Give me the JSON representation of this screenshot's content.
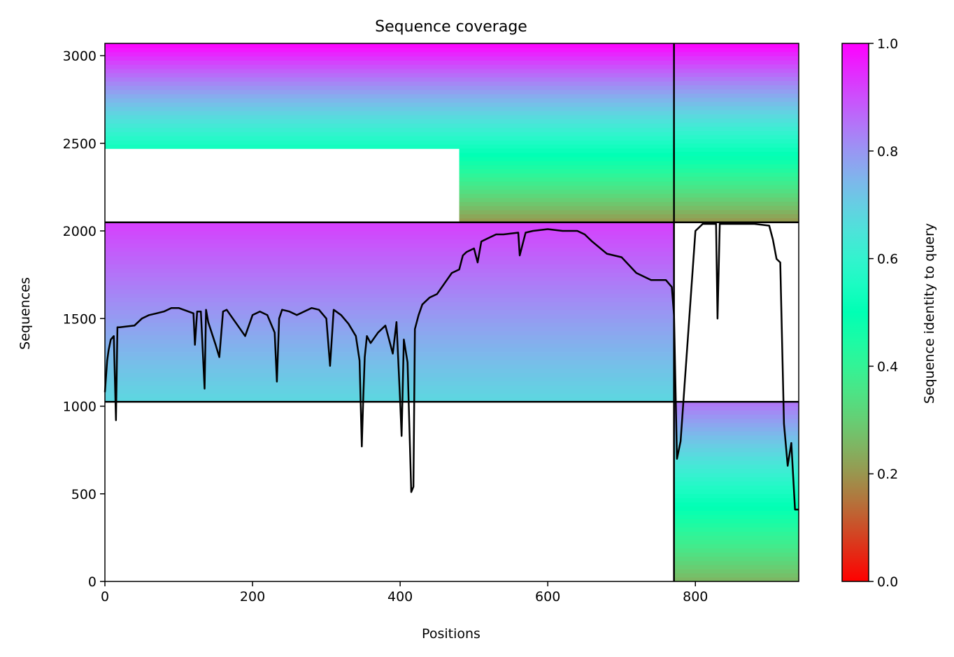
{
  "chart_data": {
    "type": "heatmap",
    "title": "Sequence coverage",
    "xlabel": "Positions",
    "ylabel": "Sequences",
    "xlim": [
      0,
      940
    ],
    "ylim": [
      0,
      3070
    ],
    "x_ticks": [
      0,
      200,
      400,
      600,
      800
    ],
    "y_ticks": [
      0,
      500,
      1000,
      1500,
      2000,
      2500,
      3000
    ],
    "colorscale": "rainbow",
    "colorbar": {
      "label": "Sequence identity to query",
      "range": [
        0,
        1
      ],
      "ticks": [
        0.0,
        0.2,
        0.4,
        0.6,
        0.8,
        1.0
      ],
      "tick_labels": [
        "0.0",
        "0.2",
        "0.4",
        "0.6",
        "0.8",
        "1.0"
      ]
    },
    "separators": {
      "vertical_x": [
        771
      ],
      "horizontal_y": [
        1025,
        2049
      ]
    },
    "blocks": [
      {
        "x_range": [
          0,
          771
        ],
        "rows": [
          [
            2470,
            3070,
            0,
            771
          ],
          [
            2050,
            2470,
            480,
            771
          ]
        ],
        "identity_top": 1.0,
        "identity_bottom": 0.2,
        "notes": "upper-left block"
      },
      {
        "x_range": [
          0,
          771
        ],
        "rows": [
          [
            1025,
            2049,
            0,
            771
          ]
        ],
        "identity_top": 0.92,
        "identity_bottom": 0.68
      },
      {
        "x_range": [
          771,
          940
        ],
        "rows": [
          [
            2050,
            3070,
            771,
            940
          ]
        ],
        "identity_top": 1.0,
        "identity_bottom": 0.2
      },
      {
        "x_range": [
          771,
          940
        ],
        "rows": [
          [
            0,
            1025,
            771,
            940
          ]
        ],
        "identity_top": 0.85,
        "identity_bottom": 0.25
      }
    ],
    "coverage_line": {
      "x": [
        0,
        3,
        5,
        8,
        12,
        15,
        17,
        20,
        40,
        50,
        60,
        70,
        80,
        90,
        100,
        120,
        122,
        125,
        130,
        135,
        137,
        140,
        150,
        155,
        160,
        165,
        170,
        180,
        190,
        200,
        210,
        220,
        230,
        233,
        236,
        240,
        250,
        260,
        270,
        280,
        290,
        300,
        305,
        310,
        320,
        330,
        340,
        345,
        348,
        350,
        352,
        355,
        360,
        370,
        380,
        390,
        395,
        400,
        402,
        405,
        410,
        415,
        418,
        420,
        425,
        430,
        440,
        450,
        460,
        470,
        480,
        485,
        490,
        500,
        505,
        510,
        520,
        530,
        540,
        560,
        562,
        570,
        580,
        600,
        620,
        640,
        650,
        660,
        680,
        700,
        720,
        740,
        760,
        768,
        771,
        775,
        780,
        790,
        800,
        810,
        820,
        828,
        830,
        833,
        840,
        860,
        880,
        900,
        905,
        910,
        915,
        920,
        925,
        930,
        935,
        940
      ],
      "y": [
        1080,
        1260,
        1320,
        1380,
        1400,
        920,
        1450,
        1450,
        1460,
        1500,
        1520,
        1530,
        1540,
        1560,
        1560,
        1530,
        1350,
        1540,
        1540,
        1100,
        1550,
        1480,
        1350,
        1280,
        1540,
        1550,
        1520,
        1460,
        1400,
        1520,
        1540,
        1520,
        1420,
        1140,
        1500,
        1550,
        1540,
        1520,
        1540,
        1560,
        1550,
        1500,
        1230,
        1550,
        1520,
        1470,
        1400,
        1260,
        770,
        1050,
        1280,
        1400,
        1360,
        1420,
        1460,
        1300,
        1480,
        1030,
        830,
        1380,
        1250,
        510,
        540,
        1440,
        1520,
        1580,
        1620,
        1640,
        1700,
        1760,
        1780,
        1860,
        1880,
        1900,
        1820,
        1940,
        1960,
        1980,
        1980,
        1990,
        1860,
        1990,
        2000,
        2010,
        2000,
        2000,
        1980,
        1940,
        1870,
        1850,
        1760,
        1720,
        1720,
        1680,
        1520,
        700,
        800,
        1400,
        2000,
        2040,
        2040,
        2040,
        1500,
        2040,
        2040,
        2040,
        2040,
        2030,
        1950,
        1840,
        1820,
        900,
        660,
        790,
        410,
        410
      ]
    }
  }
}
